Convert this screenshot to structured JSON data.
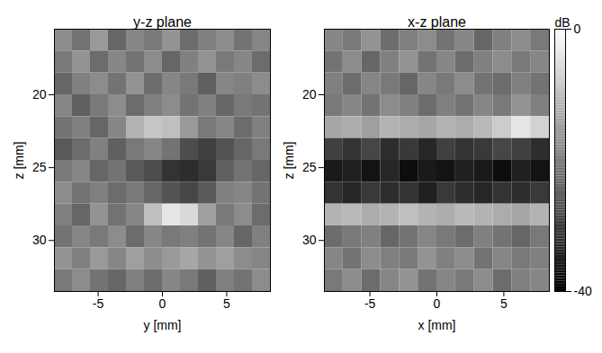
{
  "chart_data": {
    "type": "heatmap",
    "panels": [
      {
        "title": "y-z plane",
        "x_label": "y [mm]",
        "y_label": "z [mm]",
        "xlim": [
          -8.4,
          8.4
        ],
        "xticks": [
          -5,
          0,
          5
        ],
        "ylim": [
          15.5,
          33.5
        ],
        "yticks": [
          20,
          25,
          30
        ],
        "x": [
          -7.7,
          -6.3,
          -4.9,
          -3.5,
          -2.1,
          -0.7,
          0.7,
          2.1,
          3.5,
          4.9,
          6.3,
          7.7
        ],
        "z": [
          16.25,
          17.75,
          19.25,
          20.75,
          22.25,
          23.75,
          25.25,
          26.75,
          28.25,
          29.75,
          31.25,
          32.75
        ],
        "cells": [
          [
            -18,
            -22,
            -16,
            -24,
            -19,
            -21,
            -17,
            -23,
            -20,
            -18,
            -22,
            -19
          ],
          [
            -21,
            -17,
            -23,
            -19,
            -22,
            -18,
            -24,
            -20,
            -17,
            -21,
            -19,
            -23
          ],
          [
            -24,
            -20,
            -18,
            -22,
            -17,
            -23,
            -19,
            -21,
            -25,
            -19,
            -20,
            -18
          ],
          [
            -19,
            -25,
            -21,
            -18,
            -23,
            -20,
            -18,
            -22,
            -20,
            -24,
            -21,
            -22
          ],
          [
            -22,
            -20,
            -24,
            -19,
            -12,
            -9,
            -10,
            -16,
            -21,
            -19,
            -23,
            -20
          ],
          [
            -26,
            -23,
            -20,
            -25,
            -21,
            -19,
            -22,
            -28,
            -30,
            -27,
            -24,
            -21
          ],
          [
            -21,
            -19,
            -24,
            -22,
            -26,
            -28,
            -32,
            -33,
            -31,
            -25,
            -22,
            -24
          ],
          [
            -18,
            -22,
            -20,
            -23,
            -21,
            -24,
            -27,
            -29,
            -26,
            -20,
            -19,
            -22
          ],
          [
            -20,
            -24,
            -17,
            -22,
            -19,
            -10,
            -4,
            -6,
            -15,
            -21,
            -18,
            -23
          ],
          [
            -22,
            -19,
            -21,
            -18,
            -23,
            -19,
            -21,
            -20,
            -22,
            -19,
            -24,
            -20
          ],
          [
            -17,
            -20,
            -16,
            -19,
            -15,
            -18,
            -16,
            -14,
            -17,
            -15,
            -18,
            -19
          ],
          [
            -21,
            -18,
            -22,
            -24,
            -20,
            -23,
            -19,
            -21,
            -25,
            -20,
            -22,
            -18
          ]
        ]
      },
      {
        "title": "x-z plane",
        "x_label": "x [mm]",
        "y_label": "z [mm]",
        "xlim": [
          -8.4,
          8.4
        ],
        "xticks": [
          -5,
          0,
          5
        ],
        "ylim": [
          15.5,
          33.5
        ],
        "yticks": [
          20,
          25,
          30
        ],
        "x": [
          -7.7,
          -6.3,
          -4.9,
          -3.5,
          -2.1,
          -0.7,
          0.7,
          2.1,
          3.5,
          4.9,
          6.3,
          7.7
        ],
        "z": [
          16.25,
          17.75,
          19.25,
          20.75,
          22.25,
          23.75,
          25.25,
          26.75,
          28.25,
          29.75,
          31.25,
          32.75
        ],
        "cells": [
          [
            -19,
            -21,
            -17,
            -23,
            -20,
            -18,
            -22,
            -19,
            -24,
            -20,
            -18,
            -21
          ],
          [
            -22,
            -18,
            -24,
            -20,
            -17,
            -22,
            -19,
            -23,
            -20,
            -18,
            -21,
            -19
          ],
          [
            -20,
            -23,
            -19,
            -21,
            -24,
            -19,
            -21,
            -18,
            -22,
            -23,
            -20,
            -22
          ],
          [
            -21,
            -19,
            -22,
            -18,
            -20,
            -23,
            -20,
            -22,
            -19,
            -21,
            -17,
            -20
          ],
          [
            -14,
            -13,
            -15,
            -12,
            -13,
            -14,
            -12,
            -13,
            -11,
            -8,
            -4,
            -7
          ],
          [
            -30,
            -32,
            -29,
            -33,
            -31,
            -34,
            -30,
            -32,
            -31,
            -29,
            -30,
            -33
          ],
          [
            -36,
            -35,
            -37,
            -34,
            -38,
            -36,
            -37,
            -35,
            -36,
            -38,
            -35,
            -37
          ],
          [
            -32,
            -34,
            -31,
            -33,
            -32,
            -35,
            -31,
            -33,
            -34,
            -32,
            -33,
            -31
          ],
          [
            -12,
            -11,
            -13,
            -12,
            -10,
            -12,
            -13,
            -11,
            -12,
            -13,
            -14,
            -12
          ],
          [
            -23,
            -21,
            -20,
            -24,
            -22,
            -19,
            -21,
            -23,
            -20,
            -22,
            -24,
            -21
          ],
          [
            -19,
            -22,
            -18,
            -20,
            -21,
            -17,
            -20,
            -18,
            -22,
            -19,
            -21,
            -20
          ],
          [
            -21,
            -18,
            -23,
            -19,
            -17,
            -22,
            -19,
            -21,
            -18,
            -23,
            -20,
            -19
          ]
        ]
      }
    ],
    "colorbar": {
      "label": "dB",
      "lim": [
        -40,
        0
      ],
      "ticks": [
        -40,
        0
      ]
    }
  }
}
